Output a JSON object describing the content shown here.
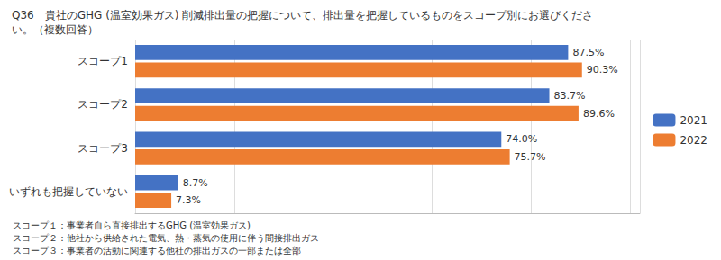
{
  "chart_data": {
    "type": "bar",
    "orientation": "horizontal",
    "title": "Q36　貴社のGHG (温室効果ガス) 削減排出量の把握について、排出量を把握しているものをスコープ別にお選びくださ\nい。（複数回答）",
    "categories": [
      "スコープ1",
      "スコープ2",
      "スコープ3",
      "いずれも把握していない"
    ],
    "series": [
      {
        "name": "2021",
        "color": "#4472C4",
        "values": [
          87.5,
          83.7,
          74.0,
          8.7
        ],
        "value_labels": [
          "87.5%",
          "83.7%",
          "74.0%",
          "8.7%"
        ]
      },
      {
        "name": "2022",
        "color": "#ED7D31",
        "values": [
          90.3,
          89.6,
          75.7,
          7.3
        ],
        "value_labels": [
          "90.3%",
          "89.6%",
          "75.7%",
          "7.3%"
        ]
      }
    ],
    "xlim": [
      0,
      102
    ],
    "xticks": [
      0,
      20,
      40,
      60,
      80,
      100
    ],
    "grid": true,
    "legend": "right",
    "data_labels": true,
    "tick_labels": "y",
    "annotations": [
      "スコープ１：事業者自ら直接排出するGHG (温室効果ガス)",
      "スコープ２：他社から供給された電気、熱・蒸気の使用に伴う間接排出ガス",
      "スコープ３：事業者の活動に関連する他社の排出ガスの一部または全部"
    ]
  }
}
